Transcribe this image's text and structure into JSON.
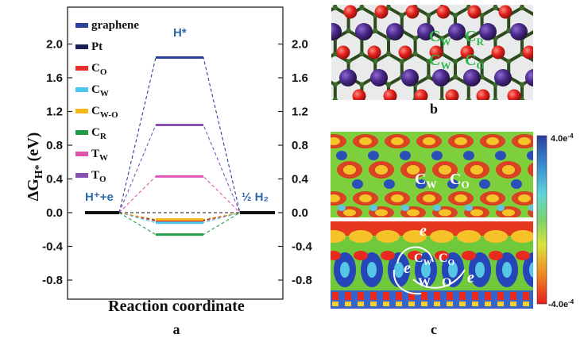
{
  "panels": {
    "a": "a",
    "b": "b",
    "c": "c"
  },
  "chart_data": {
    "type": "line",
    "title": "",
    "xlabel": "Reaction coordinate",
    "ylabel_main": "ΔG",
    "ylabel_sub": "H*",
    "ylabel_unit": "(eV)",
    "ylim": [
      -0.9,
      2.15
    ],
    "yticks": [
      "2.0",
      "1.6",
      "1.2",
      "0.8",
      "0.4",
      "0.0",
      "-0.4",
      "-0.8"
    ],
    "ytick_values": [
      2.0,
      1.6,
      1.2,
      0.8,
      0.4,
      0.0,
      -0.4,
      -0.8
    ],
    "states": [
      "H⁺+e",
      "H*",
      "½ H₂"
    ],
    "state_values": [
      0,
      null,
      0
    ],
    "legend_placement": "top-left",
    "series": [
      {
        "name": "graphene",
        "sub": "",
        "value": 1.84,
        "color": "#2a3e9a"
      },
      {
        "name": "Pt",
        "sub": "",
        "value": -0.09,
        "color": "#1a1f55"
      },
      {
        "name": "C",
        "sub": "O",
        "value": -0.1,
        "color": "#e8302a"
      },
      {
        "name": "C",
        "sub": "W",
        "value": -0.12,
        "color": "#4cc7ee"
      },
      {
        "name": "C",
        "sub": "W-O",
        "value": -0.08,
        "color": "#f2b81c"
      },
      {
        "name": "C",
        "sub": "R",
        "value": -0.26,
        "color": "#239c48"
      },
      {
        "name": "T",
        "sub": "W",
        "value": 0.43,
        "color": "#e053b0"
      },
      {
        "name": "T",
        "sub": "O",
        "value": 1.04,
        "color": "#8a50b4"
      }
    ]
  },
  "structure": {
    "site_labels": [
      {
        "main": "C",
        "sub": "W"
      },
      {
        "main": "C",
        "sub": "R"
      },
      {
        "main": "C",
        "sub": "W"
      },
      {
        "main": "C",
        "sub": "O"
      }
    ]
  },
  "charge_density": {
    "top_labels": [
      {
        "main": "C",
        "sub": "W"
      },
      {
        "main": "C",
        "sub": "O"
      }
    ],
    "bottom_labels": [
      {
        "main": "C",
        "sub": "W"
      },
      {
        "main": "C",
        "sub": "O"
      },
      {
        "main": "W",
        "sub": ""
      },
      {
        "main": "O",
        "sub": ""
      }
    ],
    "electron_symbol": "e",
    "colorbar": {
      "max": "4.0e",
      "max_exp": "-4",
      "min": "-4.0e",
      "min_exp": "-4"
    }
  }
}
